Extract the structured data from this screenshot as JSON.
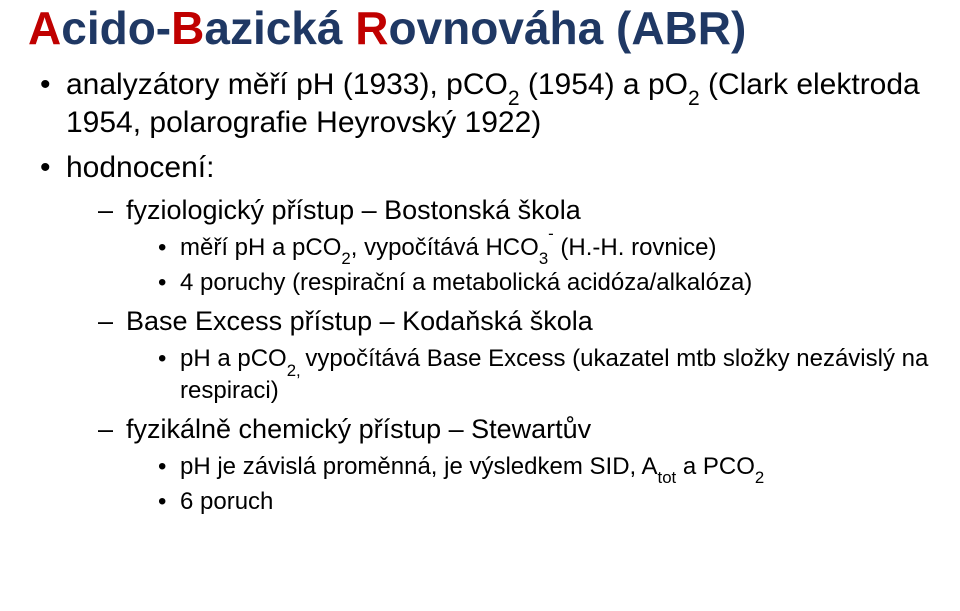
{
  "colors": {
    "red": "#c00000",
    "blue": "#1f3864",
    "black": "#000000",
    "background": "#ffffff"
  },
  "typography": {
    "title_fontsize": 46,
    "top_fontsize": 30,
    "sub1_fontsize": 27,
    "sub2_fontsize": 24,
    "font_family": "Arial"
  },
  "title": {
    "A": "A",
    "cido": "cido-",
    "B": "B",
    "azicka": "azická ",
    "R": "R",
    "ovnovaha": "ovnováha (ABR)"
  },
  "bullets": [
    {
      "pre": "analyzátory měří pH (1933), pCO",
      "sub1": "2",
      "mid": " (1954) a pO",
      "sub2": "2",
      "post": " (Clark elektroda 1954, polarografie Heyrovský 1922)"
    },
    {
      "label": "hodnocení:",
      "children": [
        {
          "label": "fyziologický přístup – Bostonská škola",
          "items": [
            {
              "pre": "měří pH a pCO",
              "sub1": "2",
              "mid1": ",",
              "mid2": " vypočítává HCO",
              "sub2": "3",
              "sup": "-",
              "post": " (H.-H. rovnice)"
            },
            {
              "text": "4 poruchy (respirační a metabolická acidóza/alkalóza)"
            }
          ]
        },
        {
          "label": "Base Excess přístup – Kodaňská škola",
          "items": [
            {
              "pre": "pH a pCO",
              "sub1": "2, ",
              "mid": "vypočítává Base Excess (ukazatel mtb složky nezávislý na respiraci)"
            }
          ]
        },
        {
          "label": "fyzikálně chemický přístup – Stewartův",
          "items": [
            {
              "pre": "pH je závislá proměnná, je výsledkem SID, A",
              "sub1": "tot",
              "mid": " a PCO",
              "sub2": "2"
            },
            {
              "text": "6 poruch"
            }
          ]
        }
      ]
    }
  ]
}
